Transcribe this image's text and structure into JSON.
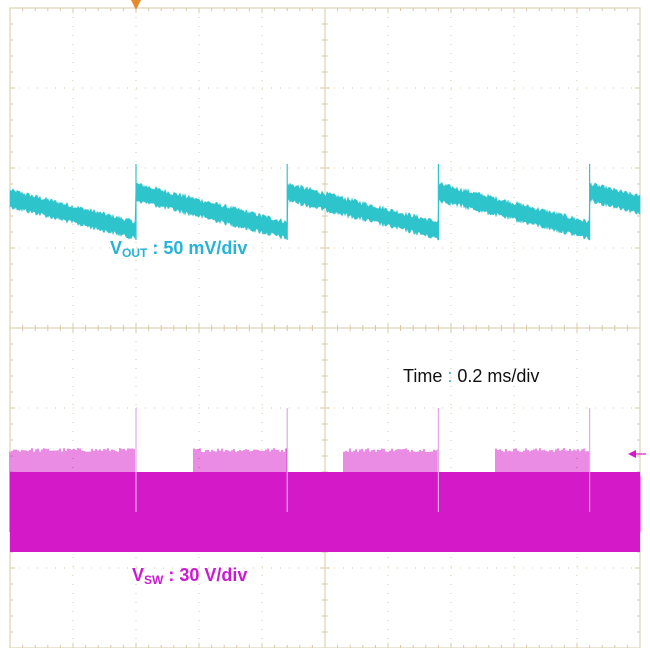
{
  "chart_data": {
    "type": "line",
    "title": "",
    "xlabel": "",
    "ylabel": "",
    "grid": true,
    "grid_divisions": {
      "horizontal": 10,
      "vertical": 8
    },
    "time_annotation": {
      "label": "Time",
      "separator": ":",
      "value": "0.2 ms/div"
    },
    "series": [
      {
        "name": "VOUT",
        "label_main": "V",
        "label_sub": "OUT",
        "label_scale": ": 50 mV/div",
        "color": "#2ec4cc",
        "label_color": "#27b3d8",
        "waveform": "sawtooth ripple",
        "period_div": 2.4,
        "ripple_div": 0.6,
        "center_div": 2.6,
        "jumps_at_div": [
          2.0,
          4.4,
          6.8,
          9.2
        ]
      },
      {
        "name": "VSW",
        "label_main": "V",
        "label_sub": "SW",
        "label_scale": ": 30 V/div",
        "color": "#d419c8",
        "label_color": "#cc1ad4",
        "waveform": "burst switching",
        "low_level_div": 6.3,
        "high_level_div": 5.6,
        "spikes_at_div": [
          2.0,
          4.4,
          6.8,
          9.2
        ],
        "spike_top_div": 5.0
      }
    ],
    "markers": {
      "trigger_color": "#e8892a",
      "vsw_marker_color": "#d419c8"
    }
  }
}
